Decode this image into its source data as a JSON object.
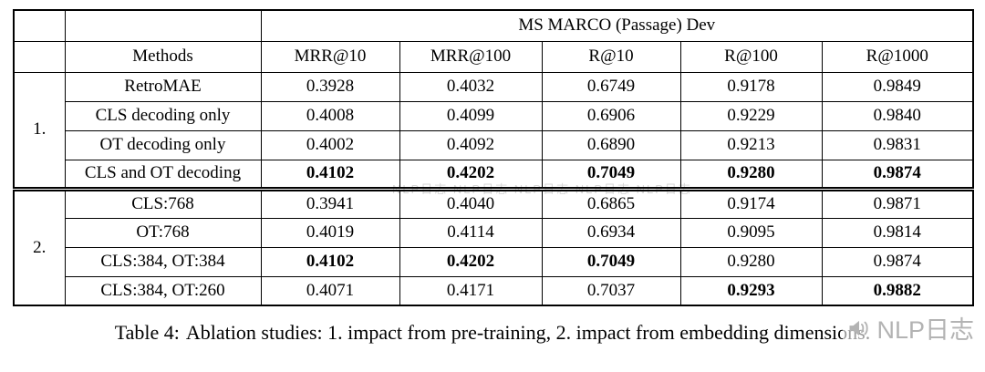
{
  "page": {
    "caption_label": "Table 4:",
    "caption_text": "Ablation studies: 1. impact from pre-training, 2. impact from embedding dimensions.",
    "watermark": "NLP日志",
    "watermark_faint": "NLP日志 NLP日志 NLP日志 NLP日志 NLP日志"
  },
  "table": {
    "span_header": "MS MARCO (Passage) Dev",
    "columns": [
      "Methods",
      "MRR@10",
      "MRR@100",
      "R@10",
      "R@100",
      "R@1000"
    ],
    "groups": [
      {
        "label": "1.",
        "rows": [
          {
            "method": "RetroMAE",
            "values": [
              "0.3928",
              "0.4032",
              "0.6749",
              "0.9178",
              "0.9849"
            ],
            "bold": [
              false,
              false,
              false,
              false,
              false
            ]
          },
          {
            "method": "CLS decoding only",
            "values": [
              "0.4008",
              "0.4099",
              "0.6906",
              "0.9229",
              "0.9840"
            ],
            "bold": [
              false,
              false,
              false,
              false,
              false
            ]
          },
          {
            "method": "OT decoding only",
            "values": [
              "0.4002",
              "0.4092",
              "0.6890",
              "0.9213",
              "0.9831"
            ],
            "bold": [
              false,
              false,
              false,
              false,
              false
            ]
          },
          {
            "method": "CLS and OT decoding",
            "values": [
              "0.4102",
              "0.4202",
              "0.7049",
              "0.9280",
              "0.9874"
            ],
            "bold": [
              true,
              true,
              true,
              true,
              true
            ]
          }
        ]
      },
      {
        "label": "2.",
        "rows": [
          {
            "method": "CLS:768",
            "values": [
              "0.3941",
              "0.4040",
              "0.6865",
              "0.9174",
              "0.9871"
            ],
            "bold": [
              false,
              false,
              false,
              false,
              false
            ]
          },
          {
            "method": "OT:768",
            "values": [
              "0.4019",
              "0.4114",
              "0.6934",
              "0.9095",
              "0.9814"
            ],
            "bold": [
              false,
              false,
              false,
              false,
              false
            ]
          },
          {
            "method": "CLS:384, OT:384",
            "values": [
              "0.4102",
              "0.4202",
              "0.7049",
              "0.9280",
              "0.9874"
            ],
            "bold": [
              true,
              true,
              true,
              false,
              false
            ]
          },
          {
            "method": "CLS:384, OT:260",
            "values": [
              "0.4071",
              "0.4171",
              "0.7037",
              "0.9293",
              "0.9882"
            ],
            "bold": [
              false,
              false,
              false,
              true,
              true
            ]
          }
        ]
      }
    ]
  }
}
